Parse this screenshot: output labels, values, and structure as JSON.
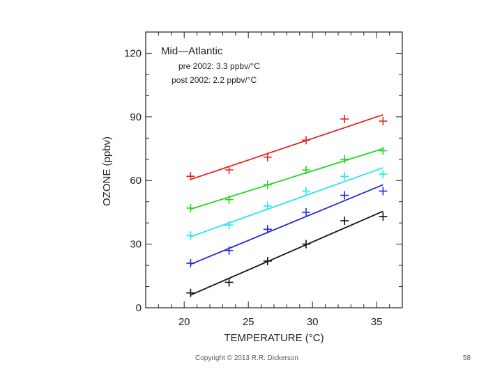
{
  "chart_data": {
    "type": "scatter",
    "title": "Mid—Atlantic",
    "annotations": [
      "pre  2002: 3.3  ppbv/°C",
      "post  2002: 2.2  ppbv/°C"
    ],
    "xlabel": "TEMPERATURE  (°C)",
    "ylabel": "OZONE  (ppbv)",
    "xlim": [
      17,
      37
    ],
    "ylim": [
      0,
      130
    ],
    "xticks": [
      20,
      25,
      30,
      35
    ],
    "xtick_labels": [
      "20",
      "25",
      "30",
      "35"
    ],
    "yticks": [
      0,
      30,
      60,
      90,
      120
    ],
    "ytick_labels": [
      "0",
      "30",
      "60",
      "90",
      "120"
    ],
    "series": [
      {
        "name": "red",
        "color": "#e8231c",
        "x": [
          20.5,
          23.5,
          26.5,
          29.5,
          32.5,
          35.5
        ],
        "y": [
          62,
          65,
          71,
          79,
          89,
          88
        ],
        "fit": [
          [
            20.5,
            60.5
          ],
          [
            35.5,
            91
          ]
        ]
      },
      {
        "name": "green",
        "color": "#22d822",
        "x": [
          20.5,
          23.5,
          26.5,
          29.5,
          32.5,
          35.5
        ],
        "y": [
          47,
          51,
          58,
          65,
          70,
          74
        ],
        "fit": [
          [
            20.5,
            46.5
          ],
          [
            35.5,
            75
          ]
        ]
      },
      {
        "name": "cyan",
        "color": "#22e8f0",
        "x": [
          20.5,
          23.5,
          26.5,
          29.5,
          32.5,
          35.5
        ],
        "y": [
          34,
          39,
          48,
          55,
          62,
          63
        ],
        "fit": [
          [
            20.5,
            33.5
          ],
          [
            35.5,
            66
          ]
        ]
      },
      {
        "name": "blue",
        "color": "#1f2ad8",
        "x": [
          20.5,
          23.5,
          26.5,
          29.5,
          32.5,
          35.5
        ],
        "y": [
          21,
          27,
          37,
          45,
          53,
          55
        ],
        "fit": [
          [
            20.5,
            20.5
          ],
          [
            35.5,
            58
          ]
        ]
      },
      {
        "name": "black",
        "color": "#111111",
        "x": [
          20.5,
          23.5,
          26.5,
          29.5,
          32.5,
          35.5
        ],
        "y": [
          7,
          12,
          22,
          30,
          41,
          43
        ],
        "fit": [
          [
            20.5,
            6
          ],
          [
            35.5,
            45.5
          ]
        ]
      }
    ]
  },
  "footer": {
    "copyright": "Copyright © 2013  R.R. Dickerson",
    "page_number": "58"
  }
}
